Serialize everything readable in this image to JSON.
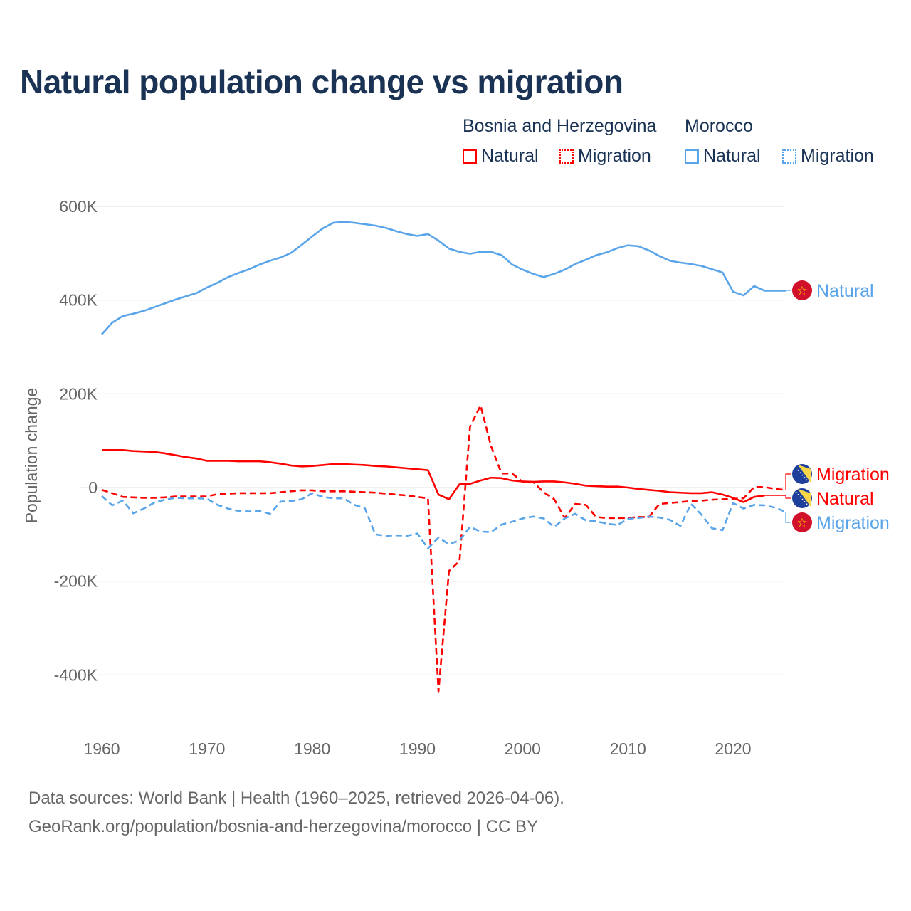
{
  "title": "Natural population change vs migration",
  "legend": {
    "groups": [
      {
        "name": "Bosnia and Herzegovina",
        "items": [
          "Natural",
          "Migration"
        ],
        "color": "#ff0000"
      },
      {
        "name": "Morocco",
        "items": [
          "Natural",
          "Migration"
        ],
        "color": "#5aa5ea"
      }
    ]
  },
  "footer": {
    "line1": "Data sources: World Bank | Health (1960–2025, retrieved 2026-04-06).",
    "line2": "GeoRank.org/population/bosnia-and-herzegovina/morocco | CC BY"
  },
  "chart_data": {
    "type": "line",
    "title": "Natural population change vs migration",
    "xlabel": "",
    "ylabel": "Population change",
    "xlim": [
      1960,
      2025
    ],
    "ylim": [
      -450000,
      620000
    ],
    "x_ticks": [
      1960,
      1970,
      1980,
      1990,
      2000,
      2010,
      2020
    ],
    "x_tick_labels": [
      "1960",
      "1970",
      "1980",
      "1990",
      "2000",
      "2010",
      "2020"
    ],
    "y_ticks": [
      600000,
      400000,
      200000,
      0,
      -200000,
      -400000
    ],
    "y_tick_labels": [
      "600K",
      "400K",
      "200K",
      "0",
      "-200K",
      "-400K"
    ],
    "grid": true,
    "x_start": 1960,
    "units_note": "values in thousands",
    "series": [
      {
        "name": "Morocco Natural",
        "end_label": "Natural",
        "country": "Morocco",
        "color": "#5aa5ea",
        "dashed": false,
        "values": [
          327,
          352,
          366,
          371,
          377,
          385,
          393,
          401,
          408,
          415,
          427,
          437,
          449,
          458,
          466,
          476,
          484,
          491,
          501,
          518,
          536,
          553,
          565,
          567,
          565,
          562,
          559,
          554,
          547,
          541,
          537,
          541,
          527,
          510,
          503,
          499,
          503,
          503,
          496,
          476,
          465,
          456,
          449,
          456,
          465,
          477,
          486,
          496,
          502,
          511,
          517,
          515,
          506,
          494,
          484,
          480,
          477,
          473,
          466,
          459,
          418,
          410,
          430,
          420,
          420,
          420
        ]
      },
      {
        "name": "Bosnia and Herzegovina Natural",
        "end_label": "Natural",
        "country": "Bosnia and Herzegovina",
        "color": "#ff0000",
        "dashed": false,
        "values": [
          80,
          80,
          80,
          78,
          77,
          76,
          73,
          69,
          65,
          62,
          57,
          57,
          57,
          56,
          56,
          56,
          54,
          51,
          47,
          45,
          46,
          48,
          50,
          50,
          49,
          48,
          46,
          45,
          43,
          41,
          39,
          37,
          -15,
          -25,
          7,
          8,
          15,
          21,
          20,
          15,
          13,
          12,
          13,
          13,
          11,
          8,
          4,
          3,
          2,
          2,
          0,
          -3,
          -5,
          -7,
          -10,
          -11,
          -12,
          -12,
          -10,
          -15,
          -22,
          -31,
          -20,
          -17
        ]
      },
      {
        "name": "Bosnia and Herzegovina Migration",
        "end_label": "Migration",
        "country": "Bosnia and Herzegovina",
        "color": "#ff0000",
        "dashed": true,
        "values": [
          -5,
          -12,
          -20,
          -21,
          -22,
          -22,
          -21,
          -19,
          -19,
          -19,
          -19,
          -14,
          -13,
          -12,
          -12,
          -12,
          -12,
          -10,
          -8,
          -6,
          -6,
          -8,
          -8,
          -8,
          -9,
          -10,
          -11,
          -13,
          -15,
          -17,
          -20,
          -23,
          -435,
          -178,
          -157,
          130,
          175,
          88,
          30,
          30,
          12,
          12,
          -10,
          -25,
          -65,
          -35,
          -37,
          -63,
          -65,
          -65,
          -65,
          -63,
          -63,
          -35,
          -33,
          -31,
          -29,
          -28,
          -26,
          -25,
          -24,
          -23,
          1,
          1,
          -3,
          -5
        ]
      },
      {
        "name": "Morocco Migration",
        "end_label": "Migration",
        "country": "Morocco",
        "color": "#5aa5ea",
        "dashed": true,
        "values": [
          -18,
          -38,
          -28,
          -55,
          -45,
          -32,
          -26,
          -22,
          -23,
          -23,
          -24,
          -37,
          -45,
          -50,
          -51,
          -50,
          -56,
          -30,
          -29,
          -25,
          -12,
          -20,
          -23,
          -23,
          -37,
          -44,
          -100,
          -103,
          -102,
          -103,
          -98,
          -130,
          -107,
          -121,
          -113,
          -84,
          -94,
          -95,
          -79,
          -73,
          -66,
          -62,
          -66,
          -84,
          -66,
          -56,
          -70,
          -72,
          -77,
          -80,
          -67,
          -65,
          -62,
          -64,
          -69,
          -82,
          -35,
          -58,
          -87,
          -91,
          -33,
          -45,
          -37,
          -38,
          -43,
          -52
        ]
      }
    ]
  }
}
